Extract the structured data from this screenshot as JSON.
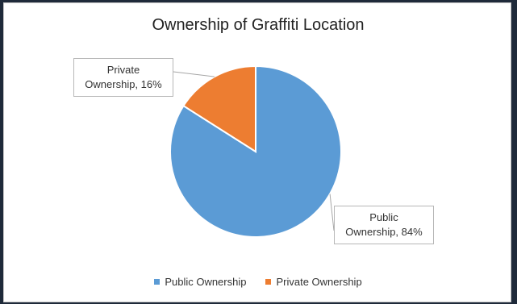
{
  "chart_data": {
    "type": "pie",
    "title": "Ownership of Graffiti Location",
    "categories": [
      "Public Ownership",
      "Private Ownership"
    ],
    "values": [
      84,
      16
    ],
    "colors": [
      "#5b9bd5",
      "#ed7d31"
    ],
    "data_labels": [
      {
        "line1": "Public",
        "line2": "Ownership, 84%"
      },
      {
        "line1": "Private",
        "line2": "Ownership, 16%"
      }
    ],
    "legend_position": "bottom"
  }
}
